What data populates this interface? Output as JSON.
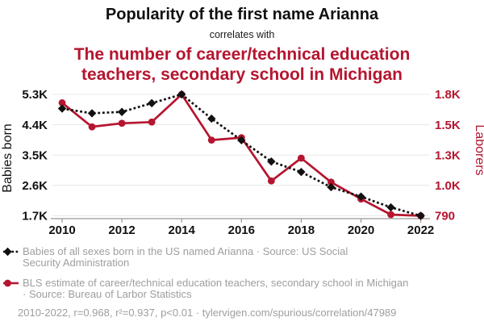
{
  "header": {
    "title": "Popularity of the first name Arianna",
    "connector": "correlates with",
    "subtitle_lines": [
      "The number of career/technical education",
      "teachers, secondary school in Michigan"
    ]
  },
  "colors": {
    "accent_red": "#b5152f",
    "series_black": "#111111",
    "muted_text": "#9e9e9e",
    "gridline": "#e8e8e8",
    "axis_line": "#999999"
  },
  "chart_data": {
    "type": "line",
    "title": "Popularity of the first name Arianna correlates with the number of career/technical education teachers, secondary school in Michigan",
    "x": [
      2010,
      2011,
      2012,
      2013,
      2014,
      2015,
      2016,
      2017,
      2018,
      2019,
      2020,
      2021,
      2022
    ],
    "x_ticks": [
      "2010",
      "2012",
      "2014",
      "2016",
      "2018",
      "2020",
      "2022"
    ],
    "grid": true,
    "left_axis": {
      "label": "Babies born",
      "min": 1700,
      "max": 5300,
      "tick_labels": [
        "5.3K",
        "4.4K",
        "3.5K",
        "2.6K",
        "1.7K"
      ]
    },
    "right_axis": {
      "label": "Laborers",
      "min": 790,
      "max": 1800,
      "tick_labels": [
        "1.8K",
        "1.5K",
        "1.3K",
        "1.0K",
        "790"
      ]
    },
    "series": [
      {
        "id": "babies-arianna",
        "name": "Babies of all sexes born in the US named Arianna",
        "axis": "left",
        "color": "#111111",
        "line_style": "dashed",
        "marker": "diamond",
        "values": [
          4880,
          4740,
          4780,
          5040,
          5300,
          4580,
          3940,
          3310,
          3000,
          2550,
          2270,
          1950,
          1700
        ]
      },
      {
        "id": "cte-teachers-michigan",
        "name": "BLS estimate of career/technical education teachers, secondary school in Michigan",
        "axis": "right",
        "color": "#b5152f",
        "line_style": "solid",
        "marker": "circle",
        "values": [
          1730,
          1530,
          1560,
          1570,
          1800,
          1420,
          1440,
          1080,
          1270,
          1070,
          930,
          800,
          790
        ]
      }
    ],
    "legend_position": "bottom"
  },
  "legend": [
    {
      "marker": "black-diamond-dashed-line",
      "lines": [
        "Babies of all sexes born in the US named Arianna · Source: US Social",
        "Security Administration"
      ]
    },
    {
      "marker": "red-circle-solid-line",
      "lines": [
        "BLS estimate of career/technical education teachers, secondary school in Michigan",
        "· Source: Bureau of Larbor Statistics"
      ]
    }
  ],
  "footer": "2010-2022, r=0.968, r²=0.937, p<0.01 · tylervigen.com/spurious/correlation/47989"
}
